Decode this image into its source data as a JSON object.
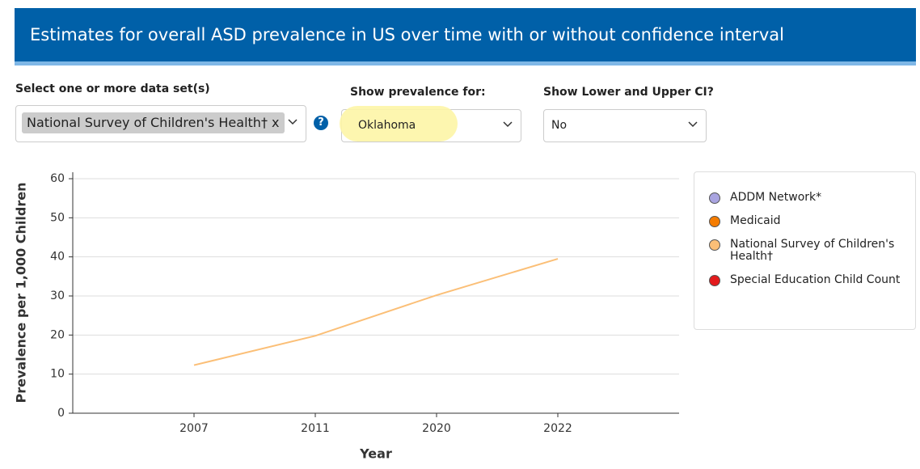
{
  "header": {
    "title": "Estimates for overall ASD prevalence in US over time with or without confidence interval"
  },
  "controls": {
    "dataset": {
      "label": "Select one or more data set(s)",
      "selected": "National Survey of Children's Health†",
      "remove": "x",
      "help": "?"
    },
    "location": {
      "label": "Show prevalence for:",
      "selected": "Oklahoma"
    },
    "ci": {
      "label": "Show Lower and Upper CI?",
      "selected": "No"
    }
  },
  "chart_data": {
    "type": "line",
    "x_label": "Year",
    "y_label": "Prevalence per 1,000 Children",
    "categories": [
      "2007",
      "2011",
      "2020",
      "2022"
    ],
    "series": [
      {
        "name": "ADDM Network*",
        "color": "#a9a4e0",
        "values": [
          null,
          null,
          null,
          null
        ]
      },
      {
        "name": "Medicaid",
        "color": "#f57c00",
        "values": [
          null,
          null,
          null,
          null
        ]
      },
      {
        "name": "National Survey of Children's Health†",
        "color": "#fbbf77",
        "values": [
          12.3,
          19.8,
          30.2,
          39.5
        ]
      },
      {
        "name": "Special Education Child Count",
        "color": "#e31a1c",
        "values": [
          null,
          null,
          null,
          null
        ]
      }
    ],
    "ylim": [
      0,
      60
    ],
    "yticks": [
      0,
      10,
      20,
      30,
      40,
      50,
      60
    ],
    "grid": true,
    "legend": "right"
  }
}
